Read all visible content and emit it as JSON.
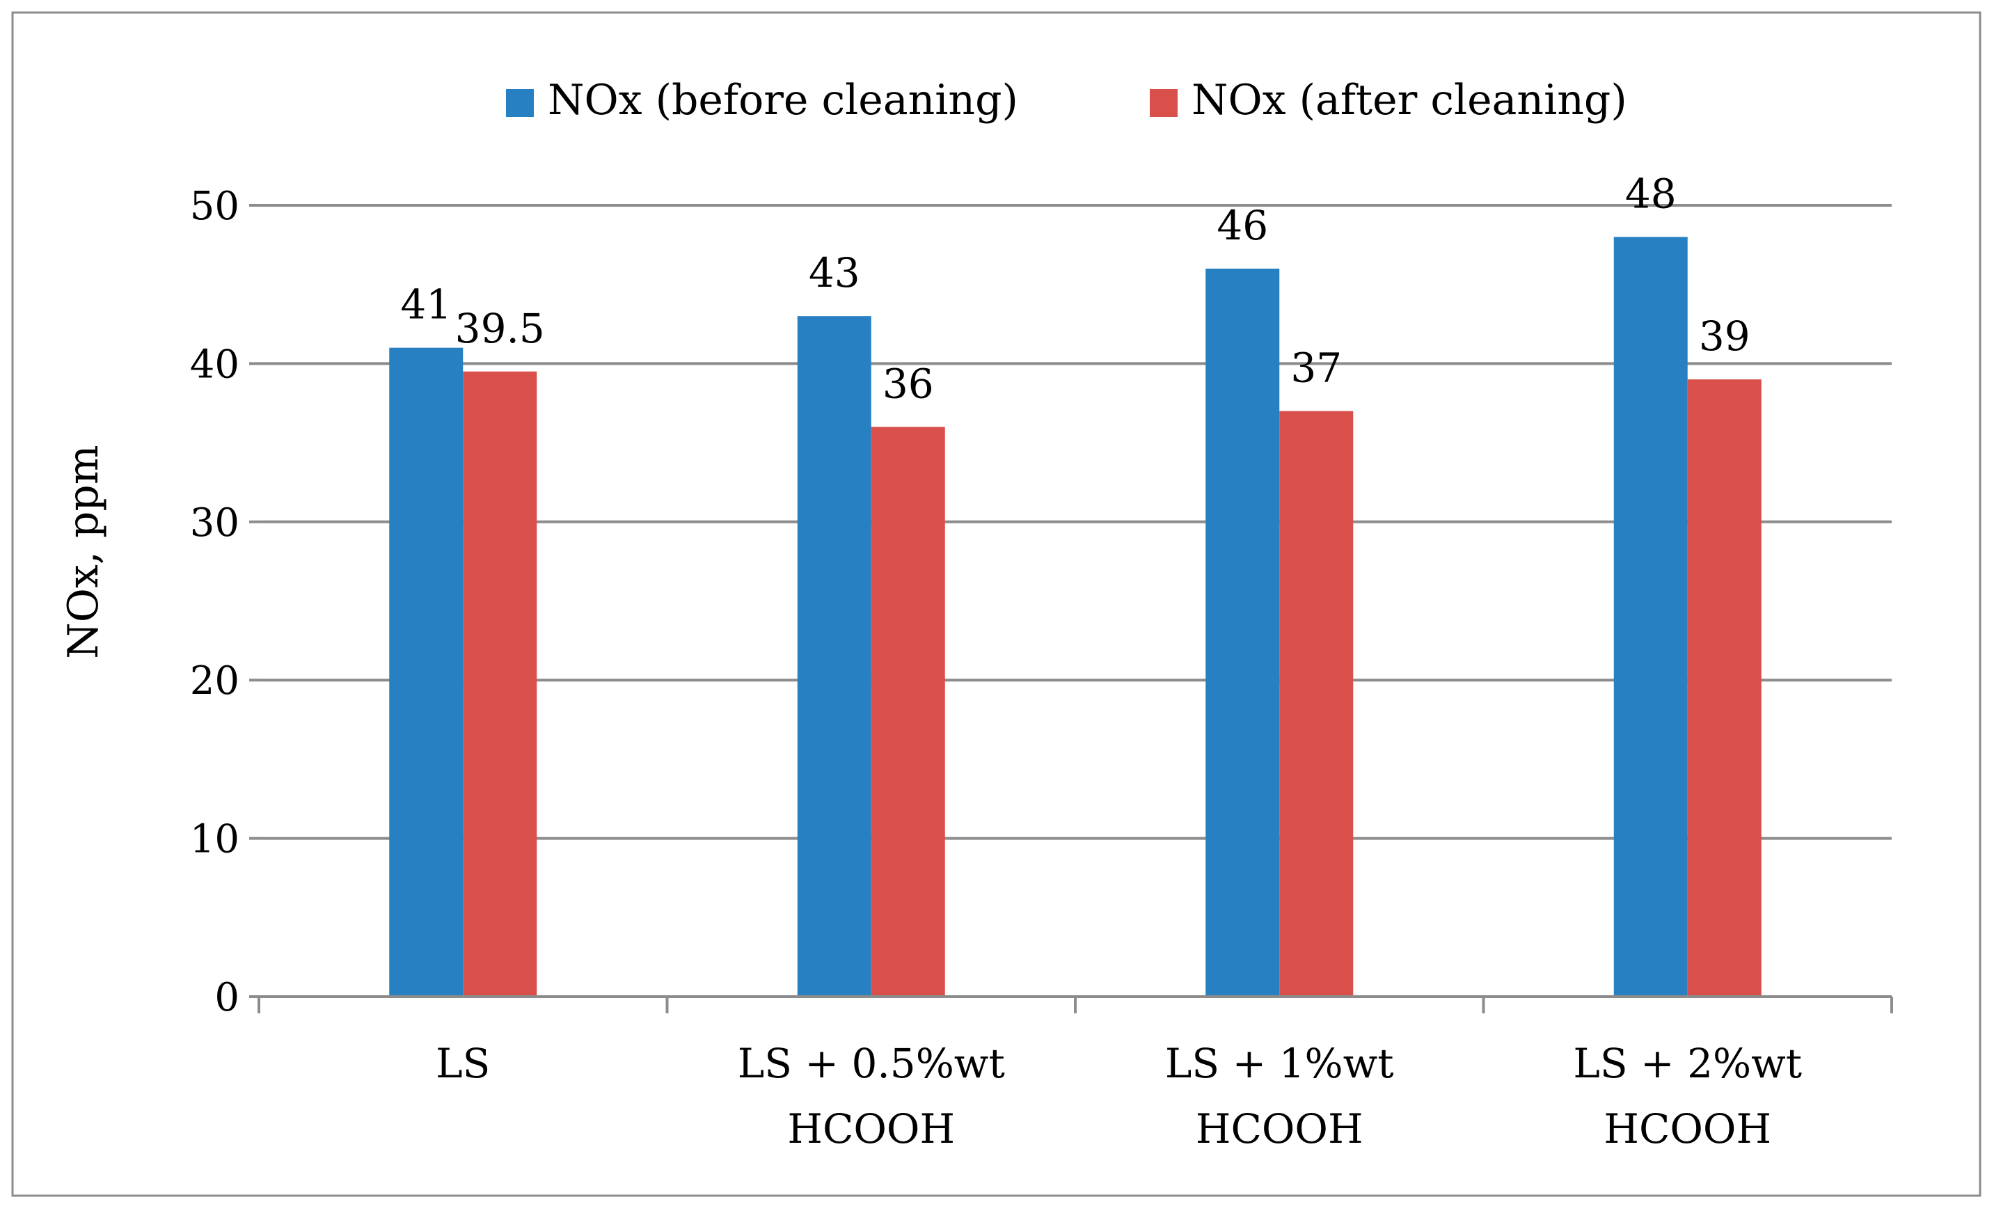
{
  "colors": {
    "before": "#2680c2",
    "after": "#d94f4c"
  },
  "chart_data": {
    "type": "bar",
    "title": "",
    "xlabel": "",
    "ylabel": "NOx, ppm",
    "ylim": [
      0,
      50
    ],
    "yticks": [
      0,
      10,
      20,
      30,
      40,
      50
    ],
    "grid": true,
    "legend_position": "top",
    "categories": [
      [
        "LS"
      ],
      [
        "LS + 0.5%wt",
        "HCOOH"
      ],
      [
        "LS + 1%wt",
        "HCOOH"
      ],
      [
        "LS + 2%wt",
        "HCOOH"
      ]
    ],
    "series": [
      {
        "name": "NOx (before cleaning)",
        "values": [
          41,
          43,
          46,
          48
        ],
        "labels": [
          "41",
          "43",
          "46",
          "48"
        ]
      },
      {
        "name": "NOx (after cleaning)",
        "values": [
          39.5,
          36,
          37,
          39
        ],
        "labels": [
          "39.5",
          "36",
          "37",
          "39"
        ]
      }
    ]
  }
}
